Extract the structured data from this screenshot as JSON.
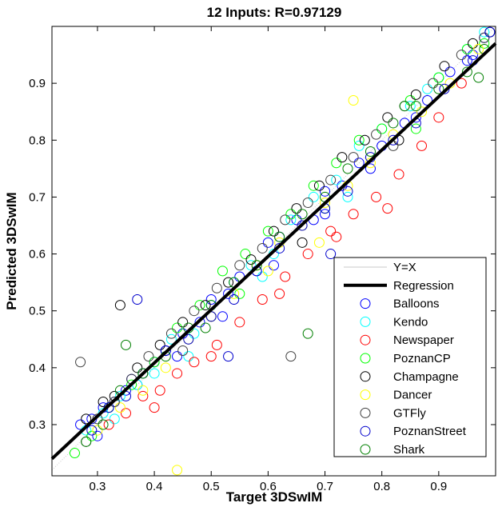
{
  "chart_data": {
    "type": "scatter",
    "title": "12 Inputs: R=0.97129",
    "xlabel": "Target 3DSwIM",
    "ylabel": "Predicted 3DSwIM",
    "xlim": [
      0.22,
      1.0
    ],
    "ylim": [
      0.21,
      1.0
    ],
    "xticks": [
      "0.3",
      "0.4",
      "0.5",
      "0.6",
      "0.7",
      "0.8",
      "0.9"
    ],
    "xtick_values": [
      0.3,
      0.4,
      0.5,
      0.6,
      0.7,
      0.8,
      0.9
    ],
    "yticks": [
      "0.3",
      "0.4",
      "0.5",
      "0.6",
      "0.7",
      "0.8",
      "0.9"
    ],
    "ytick_values": [
      0.3,
      0.4,
      0.5,
      0.6,
      0.7,
      0.8,
      0.9
    ],
    "grid": false,
    "legend_position": "bottom-right",
    "lines": [
      {
        "name": "Y=X",
        "color": "#c8c8c8",
        "x": [
          0.22,
          1.0
        ],
        "y": [
          0.22,
          1.0
        ]
      },
      {
        "name": "Regression",
        "color": "#000000",
        "x": [
          0.22,
          1.0
        ],
        "y": [
          0.24,
          0.97
        ]
      }
    ],
    "series": [
      {
        "name": "Balloons",
        "color": "#0000ff",
        "x": [
          0.27,
          0.29,
          0.31,
          0.33,
          0.35,
          0.37,
          0.4,
          0.42,
          0.45,
          0.48,
          0.5,
          0.53,
          0.55,
          0.58,
          0.6,
          0.62,
          0.65,
          0.68,
          0.7,
          0.73,
          0.76,
          0.8,
          0.84,
          0.88,
          0.92,
          0.96,
          0.98,
          0.3,
          0.36,
          0.44,
          0.52,
          0.61,
          0.7,
          0.78,
          0.86,
          0.95
        ],
        "y": [
          0.3,
          0.31,
          0.33,
          0.34,
          0.36,
          0.37,
          0.41,
          0.43,
          0.46,
          0.48,
          0.52,
          0.53,
          0.56,
          0.57,
          0.62,
          0.63,
          0.66,
          0.66,
          0.71,
          0.72,
          0.76,
          0.79,
          0.83,
          0.87,
          0.92,
          0.95,
          0.98,
          0.28,
          0.38,
          0.42,
          0.49,
          0.58,
          0.67,
          0.75,
          0.84,
          0.94
        ]
      },
      {
        "name": "Kendo",
        "color": "#00ffff",
        "x": [
          0.28,
          0.31,
          0.34,
          0.37,
          0.4,
          0.43,
          0.47,
          0.5,
          0.54,
          0.57,
          0.61,
          0.64,
          0.68,
          0.72,
          0.76,
          0.8,
          0.85,
          0.9,
          0.95,
          0.98,
          0.33,
          0.46,
          0.59,
          0.74,
          0.88
        ],
        "y": [
          0.29,
          0.32,
          0.35,
          0.37,
          0.39,
          0.45,
          0.46,
          0.51,
          0.55,
          0.58,
          0.6,
          0.66,
          0.7,
          0.73,
          0.79,
          0.82,
          0.86,
          0.91,
          0.96,
          0.99,
          0.31,
          0.42,
          0.56,
          0.7,
          0.89
        ]
      },
      {
        "name": "Newspaper",
        "color": "#ff0000",
        "x": [
          0.32,
          0.35,
          0.38,
          0.41,
          0.44,
          0.47,
          0.51,
          0.55,
          0.59,
          0.63,
          0.67,
          0.71,
          0.75,
          0.79,
          0.83,
          0.87,
          0.9,
          0.94,
          0.4,
          0.5,
          0.62,
          0.72,
          0.81
        ],
        "y": [
          0.3,
          0.32,
          0.35,
          0.36,
          0.39,
          0.41,
          0.44,
          0.48,
          0.52,
          0.56,
          0.6,
          0.64,
          0.67,
          0.7,
          0.74,
          0.79,
          0.84,
          0.9,
          0.33,
          0.42,
          0.53,
          0.63,
          0.68
        ]
      },
      {
        "name": "PoznanCP",
        "color": "#00ff00",
        "x": [
          0.26,
          0.29,
          0.32,
          0.36,
          0.4,
          0.44,
          0.48,
          0.52,
          0.56,
          0.6,
          0.64,
          0.68,
          0.72,
          0.76,
          0.8,
          0.85,
          0.9,
          0.95,
          0.98,
          0.38,
          0.55,
          0.7,
          0.86
        ],
        "y": [
          0.25,
          0.28,
          0.33,
          0.37,
          0.41,
          0.47,
          0.51,
          0.57,
          0.6,
          0.64,
          0.67,
          0.72,
          0.76,
          0.8,
          0.82,
          0.87,
          0.91,
          0.96,
          0.97,
          0.39,
          0.53,
          0.68,
          0.82
        ]
      },
      {
        "name": "Champagne",
        "color": "#000000",
        "x": [
          0.28,
          0.31,
          0.34,
          0.37,
          0.41,
          0.45,
          0.49,
          0.53,
          0.57,
          0.61,
          0.65,
          0.69,
          0.73,
          0.77,
          0.81,
          0.86,
          0.91,
          0.96,
          0.99,
          0.33,
          0.5,
          0.66,
          0.83
        ],
        "y": [
          0.31,
          0.34,
          0.51,
          0.4,
          0.44,
          0.48,
          0.51,
          0.55,
          0.59,
          0.64,
          0.68,
          0.72,
          0.77,
          0.8,
          0.84,
          0.88,
          0.93,
          0.97,
          0.99,
          0.35,
          0.49,
          0.62,
          0.8
        ]
      },
      {
        "name": "Dancer",
        "color": "#ffff00",
        "x": [
          0.3,
          0.34,
          0.38,
          0.42,
          0.46,
          0.5,
          0.54,
          0.58,
          0.62,
          0.66,
          0.7,
          0.74,
          0.78,
          0.82,
          0.87,
          0.92,
          0.97,
          0.44,
          0.6,
          0.69,
          0.75
        ],
        "y": [
          0.29,
          0.33,
          0.36,
          0.4,
          0.45,
          0.49,
          0.53,
          0.58,
          0.62,
          0.65,
          0.69,
          0.72,
          0.76,
          0.81,
          0.85,
          0.9,
          0.96,
          0.22,
          0.57,
          0.62,
          0.87
        ]
      },
      {
        "name": "GTFly",
        "color": "#404040",
        "x": [
          0.27,
          0.3,
          0.33,
          0.36,
          0.39,
          0.43,
          0.47,
          0.51,
          0.55,
          0.59,
          0.63,
          0.67,
          0.71,
          0.75,
          0.79,
          0.84,
          0.89,
          0.94,
          0.98,
          0.28,
          0.45,
          0.64,
          0.82
        ],
        "y": [
          0.41,
          0.31,
          0.34,
          0.38,
          0.42,
          0.46,
          0.5,
          0.54,
          0.58,
          0.61,
          0.66,
          0.69,
          0.73,
          0.77,
          0.81,
          0.86,
          0.9,
          0.95,
          0.98,
          0.27,
          0.43,
          0.42,
          0.79
        ]
      },
      {
        "name": "PoznanStreet",
        "color": "#0000cc",
        "x": [
          0.29,
          0.32,
          0.35,
          0.38,
          0.42,
          0.46,
          0.5,
          0.54,
          0.58,
          0.62,
          0.66,
          0.7,
          0.74,
          0.78,
          0.82,
          0.86,
          0.91,
          0.96,
          0.99,
          0.37,
          0.53,
          0.71
        ],
        "y": [
          0.29,
          0.33,
          0.35,
          0.39,
          0.43,
          0.45,
          0.49,
          0.52,
          0.57,
          0.61,
          0.65,
          0.68,
          0.71,
          0.77,
          0.8,
          0.83,
          0.89,
          0.94,
          0.99,
          0.52,
          0.42,
          0.6
        ]
      },
      {
        "name": "Shark",
        "color": "#007f00",
        "x": [
          0.28,
          0.31,
          0.34,
          0.38,
          0.42,
          0.46,
          0.5,
          0.54,
          0.58,
          0.62,
          0.66,
          0.7,
          0.74,
          0.78,
          0.82,
          0.86,
          0.9,
          0.95,
          0.98,
          0.35,
          0.49,
          0.67,
          0.84,
          0.97
        ],
        "y": [
          0.27,
          0.3,
          0.36,
          0.39,
          0.42,
          0.47,
          0.51,
          0.55,
          0.58,
          0.63,
          0.67,
          0.7,
          0.75,
          0.78,
          0.83,
          0.86,
          0.89,
          0.92,
          0.96,
          0.44,
          0.47,
          0.46,
          0.86,
          0.91
        ]
      }
    ]
  }
}
